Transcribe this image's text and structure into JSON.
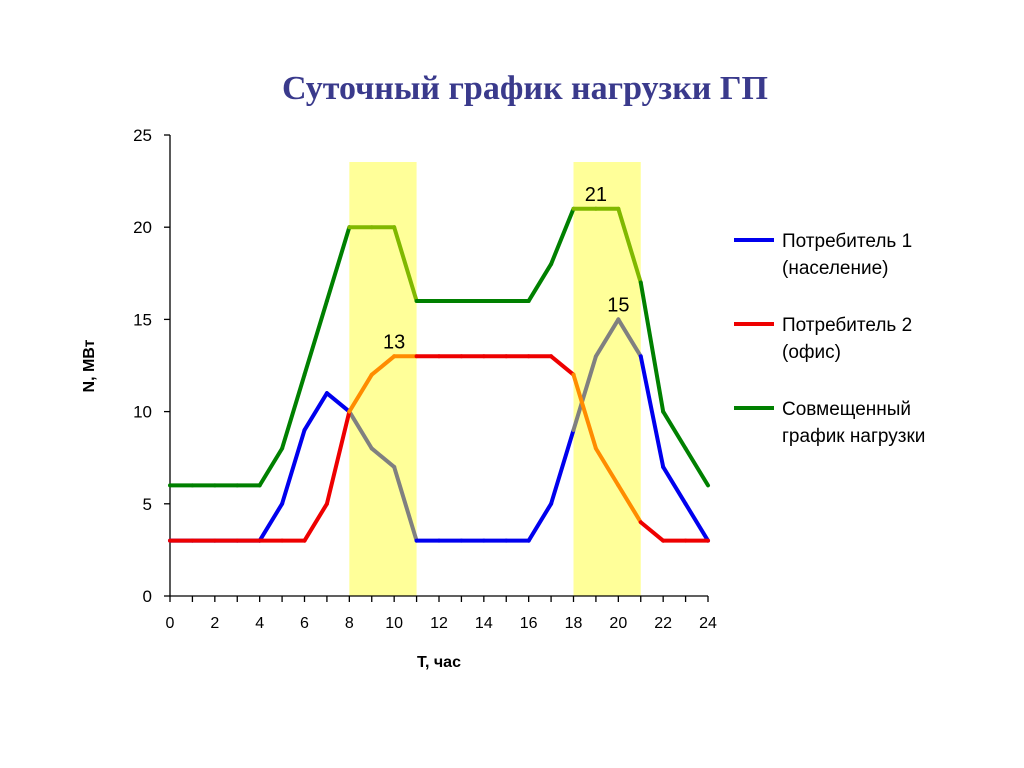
{
  "title": "Суточный график нагрузки ГП",
  "chart_data": {
    "type": "line",
    "xlabel": "T, час",
    "ylabel": "N, МВт",
    "xlim": [
      0,
      24
    ],
    "ylim": [
      0,
      25
    ],
    "x_ticks": [
      0,
      2,
      4,
      6,
      8,
      10,
      12,
      14,
      16,
      18,
      20,
      22,
      24
    ],
    "y_ticks": [
      0,
      5,
      10,
      15,
      20,
      25
    ],
    "grid": false,
    "legend_position": "right",
    "highlight_bands": [
      {
        "from": 8,
        "to": 11,
        "color": "#ffff99"
      },
      {
        "from": 18,
        "to": 21,
        "color": "#ffff99"
      }
    ],
    "x": [
      0,
      1,
      2,
      3,
      4,
      5,
      6,
      7,
      8,
      9,
      10,
      11,
      12,
      13,
      14,
      15,
      16,
      17,
      18,
      19,
      20,
      21,
      22,
      23,
      24
    ],
    "series": [
      {
        "name": "Потребитель 1\n(население)",
        "color": "#0000ee",
        "highlight_color": "#808080",
        "values": [
          3,
          3,
          3,
          3,
          3,
          5,
          9,
          11,
          10,
          8,
          7,
          3,
          3,
          3,
          3,
          3,
          3,
          5,
          9,
          13,
          15,
          13,
          7,
          5,
          3
        ]
      },
      {
        "name": "Потребитель 2\n(офис)",
        "color": "#ee0000",
        "highlight_color": "#ff8c00",
        "values": [
          3,
          3,
          3,
          3,
          3,
          3,
          3,
          5,
          10,
          12,
          13,
          13,
          13,
          13,
          13,
          13,
          13,
          13,
          12,
          8,
          6,
          4,
          3,
          3,
          3
        ]
      },
      {
        "name": "Совмещенный\nграфик нагрузки",
        "color": "#008000",
        "highlight_color": "#80b800",
        "values": [
          6,
          6,
          6,
          6,
          6,
          8,
          12,
          16,
          20,
          20,
          20,
          16,
          16,
          16,
          16,
          16,
          16,
          18,
          21,
          21,
          21,
          17,
          10,
          8,
          6
        ]
      }
    ],
    "annotations": [
      {
        "text": "13",
        "x": 10,
        "y": 13
      },
      {
        "text": "21",
        "x": 19,
        "y": 21
      },
      {
        "text": "15",
        "x": 20,
        "y": 15
      }
    ]
  }
}
